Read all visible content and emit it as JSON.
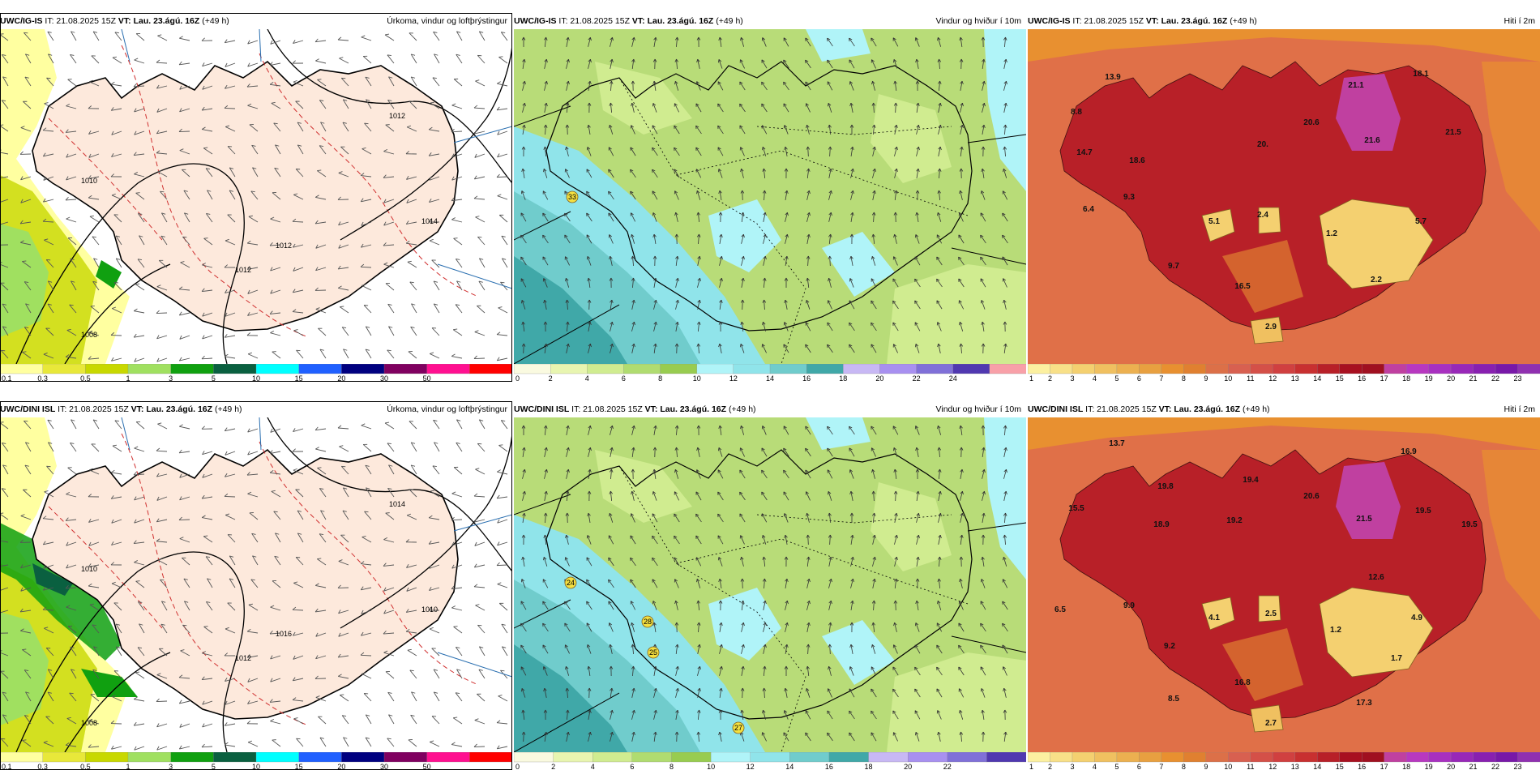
{
  "panels": [
    {
      "model": "UWC/IG-IS",
      "it": "IT: 21.08.2025 15Z",
      "vt": "VT: Lau. 23.ágú. 16Z",
      "lead": "(+49 h)",
      "title": "Úrkoma, vindur og loftþrýstingur",
      "type": "precip",
      "isobar_labels": [
        "1012",
        "1012",
        "1008",
        "1014",
        "1012",
        "1010"
      ],
      "colorbar": {
        "colors": [
          "#ffffa0",
          "#e8e83a",
          "#c8d800",
          "#a0e060",
          "#10a010",
          "#0a6040",
          "#00ffff",
          "#2060ff",
          "#000080",
          "#800060",
          "#ff1090",
          "#ff0000"
        ],
        "labels": [
          "0.1",
          "0.3",
          "0.5",
          "1",
          "3",
          "5",
          "10",
          "15",
          "20",
          "30",
          "50"
        ]
      }
    },
    {
      "model": "UWC/IG-IS",
      "it": "IT: 21.08.2025 15Z",
      "vt": "VT: Lau. 23.ágú. 16Z",
      "lead": "(+49 h)",
      "title": "Vindur og hviður í 10m",
      "type": "wind",
      "values": [
        "33"
      ],
      "colorbar": {
        "colors": [
          "#fafae0",
          "#e8f5b0",
          "#d0ec90",
          "#b0dc70",
          "#98cc50",
          "#b0f4f8",
          "#90e4ea",
          "#70cccc",
          "#40a8a8",
          "#c8b8f4",
          "#a890f0",
          "#8070d8",
          "#5038b0",
          "#f8a0a8"
        ],
        "labels": [
          "0",
          "2",
          "4",
          "6",
          "8",
          "10",
          "12",
          "14",
          "16",
          "18",
          "20",
          "22",
          "24"
        ]
      }
    },
    {
      "model": "UWC/IG-IS",
      "it": "IT: 21.08.2025 15Z",
      "vt": "VT: Lau. 23.ágú. 16Z",
      "lead": "(+49 h)",
      "title": "Hiti í 2m",
      "type": "temp",
      "values": [
        "13.9",
        "21.1",
        "18.1",
        "8.8",
        "20.",
        "20.6",
        "21.6",
        "21.5",
        "14.7",
        "18.6",
        "9.3",
        "6.4",
        "5.1",
        "2.4",
        "1.2",
        "5.7",
        "9.7",
        "16.5",
        "2.2",
        "2.9"
      ],
      "colorbar": {
        "colors": [
          "#fcf0a0",
          "#f8e088",
          "#f4d070",
          "#f0c060",
          "#ecb050",
          "#e8a040",
          "#e89030",
          "#e08030",
          "#dc7048",
          "#d86050",
          "#d45048",
          "#d04040",
          "#c83030",
          "#b82028",
          "#a81020",
          "#a01020",
          "#c040a0",
          "#b838c0",
          "#a830c0",
          "#9828b8",
          "#8820b0",
          "#7818a8",
          "#9030b0"
        ],
        "labels": [
          "1",
          "2",
          "3",
          "4",
          "5",
          "6",
          "7",
          "8",
          "9",
          "10",
          "11",
          "12",
          "13",
          "14",
          "15",
          "16",
          "17",
          "18",
          "19",
          "20",
          "21",
          "22",
          "23"
        ]
      }
    },
    {
      "model": "UWC/DINI ISL",
      "it": "IT: 21.08.2025 15Z",
      "vt": "VT: Lau. 23.ágú. 16Z",
      "lead": "(+49 h)",
      "title": "Úrkoma, vindur og loftþrýstingur",
      "type": "precip",
      "isobar_labels": [
        "1012",
        "1014",
        "1008",
        "1010",
        "1016",
        "1010"
      ],
      "colorbar": {
        "colors": [
          "#ffffa0",
          "#e8e83a",
          "#c8d800",
          "#a0e060",
          "#10a010",
          "#0a6040",
          "#00ffff",
          "#2060ff",
          "#000080",
          "#800060",
          "#ff1090",
          "#ff0000"
        ],
        "labels": [
          "0.1",
          "0.3",
          "0.5",
          "1",
          "3",
          "5",
          "10",
          "15",
          "20",
          "30",
          "50"
        ]
      }
    },
    {
      "model": "UWC/DINI ISL",
      "it": "IT: 21.08.2025 15Z",
      "vt": "VT: Lau. 23.ágú. 16Z",
      "lead": "(+49 h)",
      "title": "Vindur og hviður í 10m",
      "type": "wind",
      "values": [
        "24",
        "28",
        "25",
        "27"
      ],
      "colorbar": {
        "colors": [
          "#fafae0",
          "#e8f5b0",
          "#d0ec90",
          "#b0dc70",
          "#98cc50",
          "#b0f4f8",
          "#90e4ea",
          "#70cccc",
          "#40a8a8",
          "#c8b8f4",
          "#a890f0",
          "#8070d8",
          "#5038b0"
        ],
        "labels": [
          "0",
          "2",
          "4",
          "6",
          "8",
          "10",
          "12",
          "14",
          "16",
          "18",
          "20",
          "22"
        ]
      }
    },
    {
      "model": "UWC/DINI ISL",
      "it": "IT: 21.08.2025 15Z",
      "vt": "VT: Lau. 23.ágú. 16Z",
      "lead": "(+49 h)",
      "title": "Hiti í 2m",
      "type": "temp",
      "values": [
        "13.7",
        "16.9",
        "19.8",
        "19.4",
        "20.6",
        "15.5",
        "18.9",
        "19.2",
        "21.5",
        "19.5",
        "19.5",
        "12.6",
        "6.5",
        "9.9",
        "4.1",
        "2.5",
        "1.2",
        "4.9",
        "9.2",
        "1.7",
        "16.8",
        "8.5",
        "17.3",
        "2.7"
      ],
      "colorbar": {
        "colors": [
          "#fcf0a0",
          "#f8e088",
          "#f4d070",
          "#f0c060",
          "#ecb050",
          "#e8a040",
          "#e89030",
          "#e08030",
          "#dc7048",
          "#d86050",
          "#d45048",
          "#d04040",
          "#c83030",
          "#b82028",
          "#a81020",
          "#a01020",
          "#c040a0",
          "#b838c0",
          "#a830c0",
          "#9828b8",
          "#8820b0",
          "#7818a8",
          "#9030b0"
        ],
        "labels": [
          "1",
          "2",
          "3",
          "4",
          "5",
          "6",
          "7",
          "8",
          "9",
          "10",
          "11",
          "12",
          "13",
          "14",
          "15",
          "16",
          "17",
          "18",
          "19",
          "20",
          "21",
          "22",
          "23"
        ]
      }
    }
  ]
}
